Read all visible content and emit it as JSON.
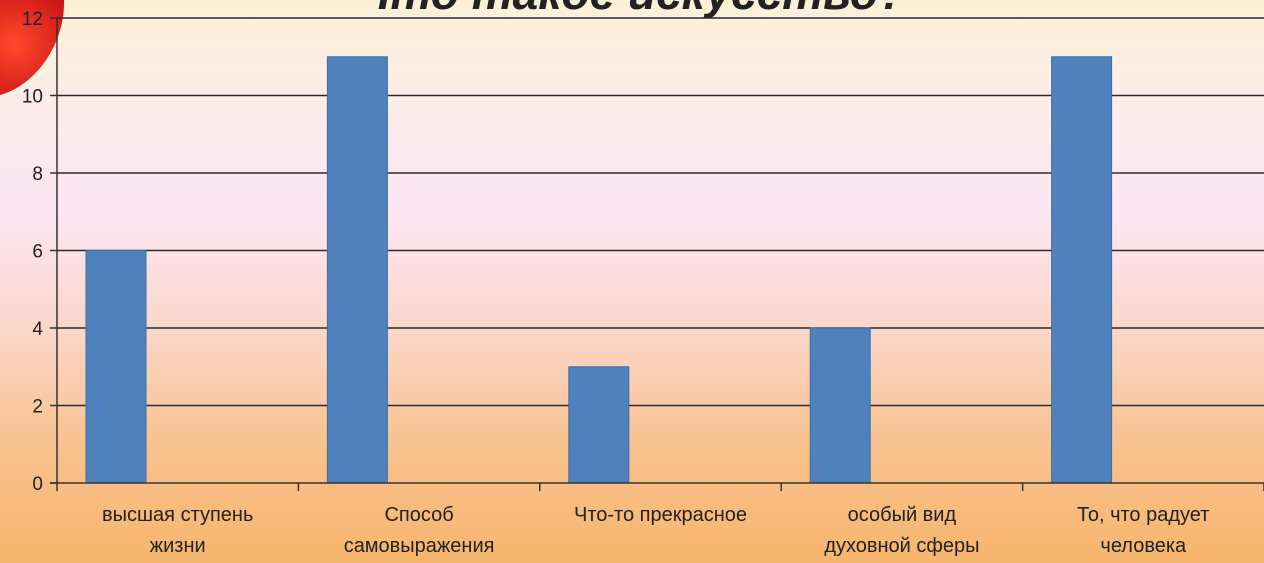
{
  "chart_data": {
    "type": "bar",
    "title": "Что такое искусство?",
    "categories": [
      [
        "высшая ступень",
        "жизни"
      ],
      [
        "Способ",
        "самовыражения"
      ],
      [
        "Что-то прекрасное"
      ],
      [
        "особый вид",
        "духовной сферы"
      ],
      [
        "То, что радует",
        "человека"
      ]
    ],
    "values": [
      6,
      11,
      3,
      4,
      11
    ],
    "ylim": [
      0,
      12
    ],
    "yticks": [
      0,
      2,
      4,
      6,
      8,
      10,
      12
    ],
    "grid": true,
    "bar_color": "#4f81bd",
    "grid_color": "#2a2a2a"
  }
}
